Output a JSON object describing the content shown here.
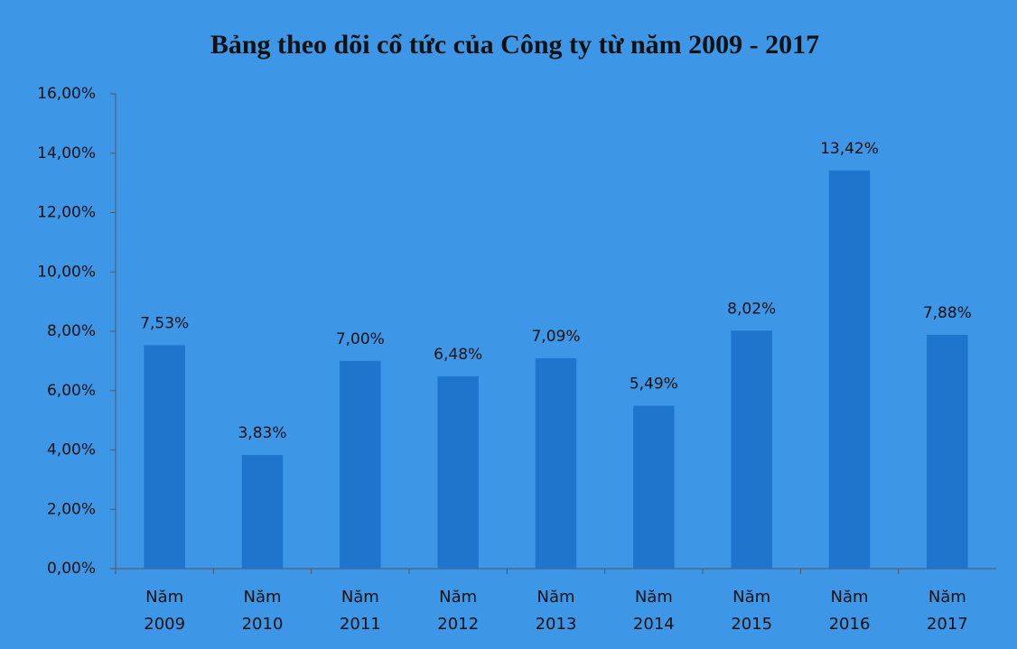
{
  "chart_data": {
    "type": "bar",
    "title": "Bảng theo dõi cổ tức của Công ty từ năm 2009 - 2017",
    "categories": [
      "Năm 2009",
      "Năm 2010",
      "Năm 2011",
      "Năm 2012",
      "Năm 2013",
      "Năm 2014",
      "Năm 2015",
      "Năm 2016",
      "Năm 2017"
    ],
    "values": [
      7.53,
      3.83,
      7.0,
      6.48,
      7.09,
      5.49,
      8.02,
      13.42,
      7.88
    ],
    "value_labels": [
      "7,53%",
      "3,83%",
      "7,00%",
      "6,48%",
      "7,09%",
      "5,49%",
      "8,02%",
      "13,42%",
      "7,88%"
    ],
    "color": "#1f74cc",
    "ylim": [
      0,
      16
    ],
    "yticks": [
      {
        "value": 0,
        "label": "0,00%"
      },
      {
        "value": 2,
        "label": "2,00%"
      },
      {
        "value": 4,
        "label": "4,00%"
      },
      {
        "value": 6,
        "label": "6,00%"
      },
      {
        "value": 8,
        "label": "8,00%"
      },
      {
        "value": 10,
        "label": "10,00%"
      },
      {
        "value": 12,
        "label": "12,00%"
      },
      {
        "value": 14,
        "label": "14,00%"
      },
      {
        "value": 16,
        "label": "16,00%"
      }
    ],
    "grid": false
  }
}
